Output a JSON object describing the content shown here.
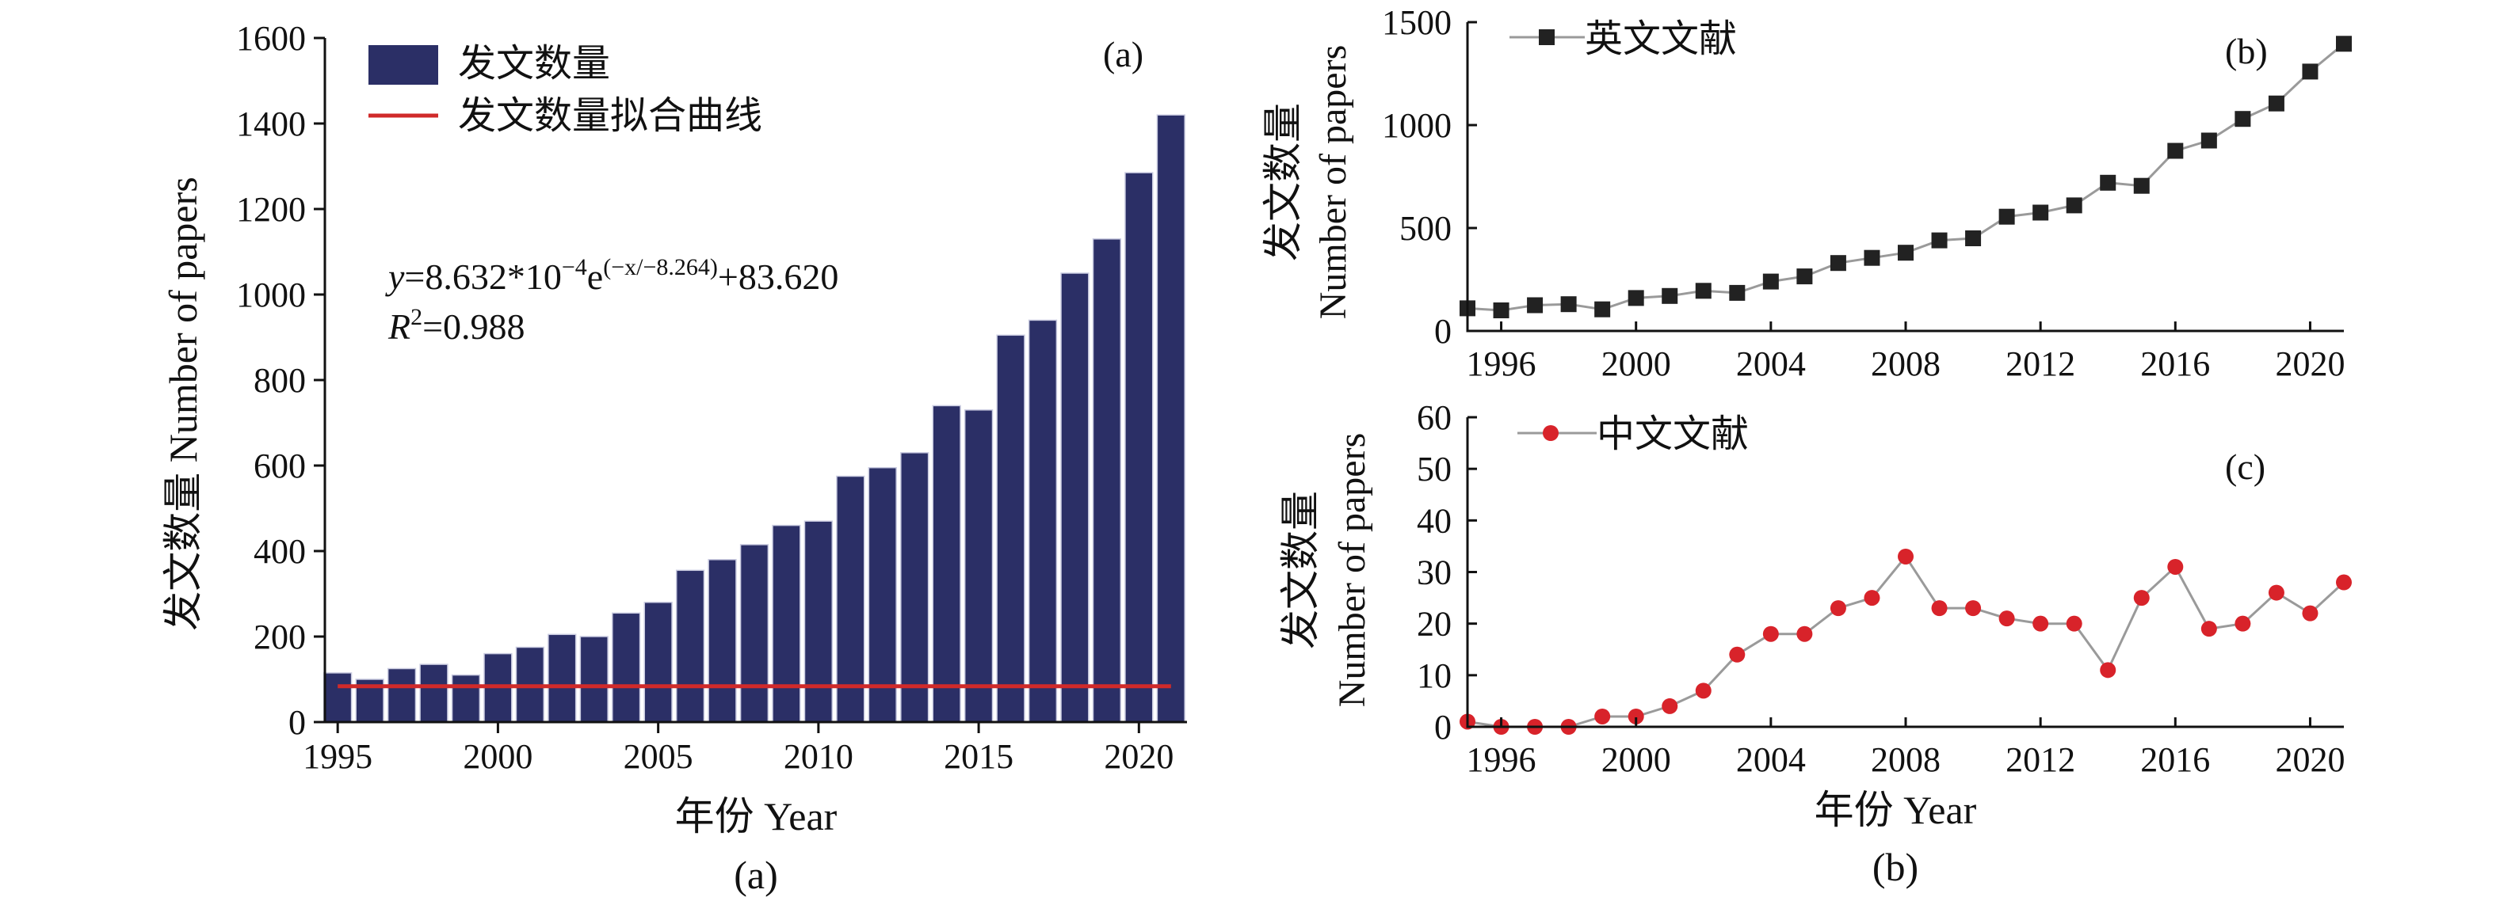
{
  "chart_data": [
    {
      "panel": "(a)",
      "type": "bar",
      "panel_label": "(a)",
      "caption": "(a)",
      "xlabel": "年份 Year",
      "ylabel": "发文数量 Number of papers",
      "xlim": [
        1994.6,
        2021.5
      ],
      "ylim": [
        0,
        1600
      ],
      "x_ticks": [
        1995,
        2000,
        2005,
        2010,
        2015,
        2020
      ],
      "y_ticks": [
        0,
        200,
        400,
        600,
        800,
        1000,
        1200,
        1400,
        1600
      ],
      "legend_position": "top-left",
      "categories": [
        1995,
        1996,
        1997,
        1998,
        1999,
        2000,
        2001,
        2002,
        2003,
        2004,
        2005,
        2006,
        2007,
        2008,
        2009,
        2010,
        2011,
        2012,
        2013,
        2014,
        2015,
        2016,
        2017,
        2018,
        2019,
        2020,
        2021
      ],
      "series": [
        {
          "name": "发文数量",
          "type": "bar",
          "color": "#2b2f66",
          "values": [
            115,
            100,
            125,
            135,
            110,
            160,
            175,
            205,
            200,
            255,
            280,
            355,
            380,
            415,
            460,
            470,
            575,
            595,
            630,
            740,
            730,
            905,
            940,
            1050,
            1130,
            1285,
            1420
          ]
        },
        {
          "name": "发文数量拟合曲线",
          "type": "line",
          "color": "#d02a2a",
          "formula": {
            "a": 0.0008632,
            "t": 8.264,
            "y0": 83.62
          }
        }
      ],
      "equation_line1": {
        "prefix": "y",
        "mid": "=8.632*10",
        "exp1": "−4",
        "e": "e",
        "exp2": "(−x/−8.264)",
        "tail": "+83.620"
      },
      "equation_line2": {
        "prefix": "R",
        "exp": "2",
        "tail": "=0.988"
      }
    },
    {
      "panel": "(b)",
      "type": "line",
      "panel_label": "(b)",
      "ylabel_cn": "发文数量",
      "ylabel_en": "Number of papers",
      "xlim": [
        1995,
        2021
      ],
      "ylim": [
        0,
        1500
      ],
      "x_ticks": [
        1996,
        2000,
        2004,
        2008,
        2012,
        2016,
        2020
      ],
      "y_ticks": [
        0,
        500,
        1000,
        1500
      ],
      "legend_position": "top-left",
      "series": [
        {
          "name": "英文文献",
          "color": "#222222",
          "marker": "square",
          "x": [
            1995,
            1996,
            1997,
            1998,
            1999,
            2000,
            2001,
            2002,
            2003,
            2004,
            2005,
            2006,
            2007,
            2008,
            2009,
            2010,
            2011,
            2012,
            2013,
            2014,
            2015,
            2016,
            2017,
            2018,
            2019,
            2020,
            2021
          ],
          "values": [
            110,
            100,
            125,
            130,
            105,
            160,
            170,
            195,
            185,
            240,
            265,
            330,
            355,
            380,
            440,
            450,
            555,
            575,
            610,
            720,
            705,
            875,
            925,
            1030,
            1105,
            1260,
            1395
          ]
        }
      ]
    },
    {
      "panel": "(c)",
      "type": "line",
      "panel_label": "(c)",
      "caption": "(b)",
      "xlabel": "年份 Year",
      "ylabel_cn": "发文数量",
      "ylabel_en": "Number of papers",
      "xlim": [
        1995,
        2021
      ],
      "ylim": [
        0,
        60
      ],
      "x_ticks": [
        1996,
        2000,
        2004,
        2008,
        2012,
        2016,
        2020
      ],
      "y_ticks": [
        0,
        10,
        20,
        30,
        40,
        50,
        60
      ],
      "legend_position": "top-left",
      "series": [
        {
          "name": "中文文献",
          "color": "#d8232a",
          "marker": "circle",
          "x": [
            1995,
            1996,
            1997,
            1998,
            1999,
            2000,
            2001,
            2002,
            2003,
            2004,
            2005,
            2006,
            2007,
            2008,
            2009,
            2010,
            2011,
            2012,
            2013,
            2014,
            2015,
            2016,
            2017,
            2018,
            2019,
            2020,
            2021
          ],
          "values": [
            1,
            0,
            0,
            0,
            2,
            2,
            4,
            7,
            14,
            18,
            18,
            23,
            25,
            33,
            23,
            23,
            21,
            20,
            20,
            11,
            25,
            31,
            19,
            20,
            26,
            22,
            28
          ]
        }
      ]
    }
  ]
}
